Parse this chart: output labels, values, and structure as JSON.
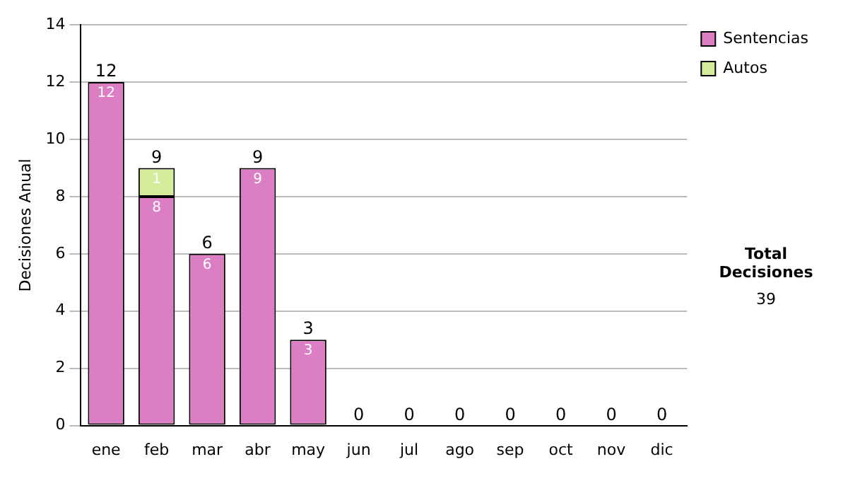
{
  "chart_data": {
    "type": "bar",
    "stacked": true,
    "ylabel": "Decisiones Anual",
    "categories": [
      "ene",
      "feb",
      "mar",
      "abr",
      "may",
      "jun",
      "jul",
      "ago",
      "sep",
      "oct",
      "nov",
      "dic"
    ],
    "series": [
      {
        "name": "Sentencias",
        "color": "#dc7ec4",
        "values": [
          12,
          8,
          6,
          9,
          3,
          0,
          0,
          0,
          0,
          0,
          0,
          0
        ],
        "value_labels": [
          "12",
          "8",
          "6",
          "9",
          "3",
          null,
          null,
          null,
          null,
          null,
          null,
          null
        ]
      },
      {
        "name": "Autos",
        "color": "#d4ec9c",
        "values": [
          0,
          1,
          0,
          0,
          0,
          0,
          0,
          0,
          0,
          0,
          0,
          0
        ],
        "value_labels": [
          null,
          "1",
          null,
          null,
          null,
          null,
          null,
          null,
          null,
          null,
          null,
          null
        ]
      }
    ],
    "totals": [
      "12",
      "9",
      "6",
      "9",
      "3",
      "0",
      "0",
      "0",
      "0",
      "0",
      "0",
      "0"
    ],
    "ylim": [
      0,
      14
    ],
    "yticks": [
      0,
      2,
      4,
      6,
      8,
      10,
      12,
      14
    ],
    "grid": "y",
    "legend": "right",
    "annotations": [
      "Total Decisiones",
      "39"
    ]
  }
}
